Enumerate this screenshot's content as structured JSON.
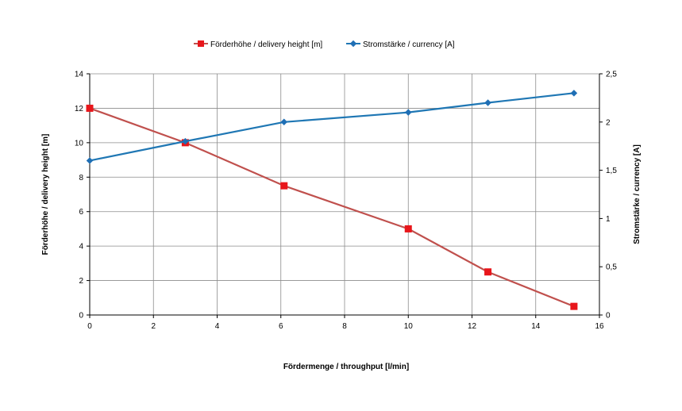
{
  "chart_data": {
    "type": "line",
    "xlabel": "Fördermenge / throughput [l/min]",
    "ylabel_left": "Förderhöhe / delivery height [m]",
    "ylabel_right": "Stromstärke / currency [A]",
    "xlim": [
      0,
      16
    ],
    "x_ticks": [
      "0",
      "2",
      "4",
      "6",
      "8",
      "10",
      "12",
      "14",
      "16"
    ],
    "ylim_left": [
      0,
      14
    ],
    "y_left_ticks": [
      "0",
      "2",
      "4",
      "6",
      "8",
      "10",
      "12",
      "14"
    ],
    "ylim_right": [
      0,
      2.5
    ],
    "y_right_ticks": [
      "0",
      "0,5",
      "1",
      "1,5",
      "2",
      "2,5"
    ],
    "grid": true,
    "legend_position": "top-center",
    "series": [
      {
        "name": "Förderhöhe / delivery height  [m]",
        "axis": "left",
        "color": "#c0504d",
        "marker": "square",
        "marker_color": "#e8161b",
        "x": [
          0,
          3,
          6.1,
          10,
          12.5,
          15.2
        ],
        "values": [
          12,
          10,
          7.5,
          5,
          2.5,
          0.5
        ]
      },
      {
        "name": "Stromstärke / currency [A]",
        "axis": "right",
        "color": "#1f77b4",
        "marker": "diamond",
        "marker_color": "#1f6fb5",
        "x": [
          0,
          3,
          6.1,
          10,
          12.5,
          15.2
        ],
        "values": [
          1.6,
          1.8,
          2.0,
          2.1,
          2.2,
          2.3
        ]
      }
    ]
  }
}
